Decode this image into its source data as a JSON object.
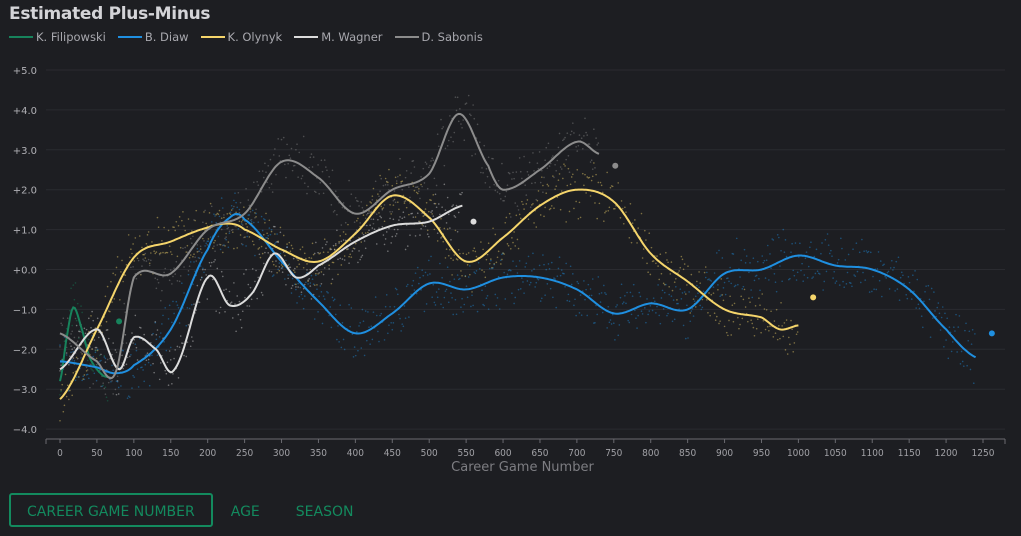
{
  "chart_data": {
    "type": "line",
    "title": "Estimated Plus-Minus",
    "xlabel": "Career Game Number",
    "ylabel": "",
    "xlim": [
      -10,
      1285
    ],
    "ylim": [
      -4.2,
      5.2
    ],
    "xticks": [
      0,
      50,
      100,
      150,
      200,
      250,
      300,
      350,
      400,
      450,
      500,
      550,
      600,
      650,
      700,
      750,
      800,
      850,
      900,
      950,
      1000,
      1050,
      1100,
      1150,
      1200,
      1250
    ],
    "yticks": [
      5,
      4,
      3,
      2,
      1,
      0,
      -1,
      -2,
      -3,
      -4
    ],
    "ytick_labels": [
      "+5.0",
      "+4.0",
      "+3.0",
      "+2.0",
      "+1.0",
      "+0.0",
      "−1.0",
      "−2.0",
      "−3.0",
      "−4.0"
    ],
    "grid": "horizontal",
    "legend_position": "top-left",
    "series": [
      {
        "name": "K. Filipowski",
        "color": "#17835c",
        "x": [
          0,
          10,
          18,
          28,
          40,
          55,
          65
        ],
        "y": [
          -2.8,
          -1.6,
          -0.95,
          -1.4,
          -2.2,
          -2.6,
          -2.7
        ],
        "last_point": {
          "x": 80,
          "y": -1.3
        }
      },
      {
        "name": "B. Diaw",
        "color": "#1f8fe0",
        "x": [
          0,
          50,
          75,
          100,
          150,
          200,
          230,
          250,
          300,
          350,
          400,
          450,
          500,
          550,
          600,
          650,
          700,
          750,
          800,
          850,
          900,
          950,
          1000,
          1050,
          1100,
          1150,
          1200,
          1240
        ],
        "y": [
          -2.3,
          -2.45,
          -2.6,
          -2.4,
          -1.5,
          0.5,
          1.3,
          1.25,
          0.2,
          -0.8,
          -1.6,
          -1.1,
          -0.35,
          -0.5,
          -0.2,
          -0.2,
          -0.5,
          -1.1,
          -0.85,
          -1.0,
          -0.1,
          0.0,
          0.35,
          0.1,
          0.0,
          -0.5,
          -1.5,
          -2.2
        ],
        "last_point": {
          "x": 1262,
          "y": -1.6
        }
      },
      {
        "name": "K. Olynyk",
        "color": "#f5d56b",
        "x": [
          0,
          50,
          100,
          150,
          200,
          230,
          250,
          300,
          350,
          400,
          450,
          500,
          550,
          600,
          650,
          700,
          750,
          800,
          850,
          900,
          950,
          975,
          1000
        ],
        "y": [
          -3.25,
          -1.5,
          0.3,
          0.7,
          1.05,
          1.15,
          1.0,
          0.5,
          0.2,
          0.9,
          1.85,
          1.3,
          0.2,
          0.8,
          1.6,
          2.0,
          1.7,
          0.4,
          -0.3,
          -1.0,
          -1.2,
          -1.5,
          -1.4
        ],
        "last_point": {
          "x": 1020,
          "y": -0.7
        }
      },
      {
        "name": "M. Wagner",
        "color": "#dcdcdc",
        "x": [
          0,
          50,
          80,
          100,
          130,
          155,
          200,
          230,
          260,
          290,
          320,
          350,
          400,
          450,
          500,
          545
        ],
        "y": [
          -2.5,
          -1.5,
          -2.5,
          -1.7,
          -2.0,
          -2.5,
          -0.2,
          -0.9,
          -0.6,
          0.4,
          -0.2,
          0.1,
          0.7,
          1.1,
          1.2,
          1.6
        ],
        "last_point": {
          "x": 560,
          "y": 1.2
        }
      },
      {
        "name": "D. Sabonis",
        "color": "#8c8c8c",
        "x": [
          0,
          50,
          75,
          100,
          150,
          200,
          250,
          300,
          350,
          400,
          450,
          500,
          540,
          580,
          600,
          650,
          700,
          730
        ],
        "y": [
          -1.6,
          -2.3,
          -2.6,
          -0.2,
          -0.1,
          1.0,
          1.4,
          2.7,
          2.3,
          1.4,
          2.0,
          2.4,
          3.9,
          2.6,
          2.0,
          2.5,
          3.2,
          2.9
        ],
        "last_point": {
          "x": 752,
          "y": 2.6
        }
      }
    ]
  },
  "tabs": [
    {
      "label": "CAREER GAME NUMBER",
      "active": true
    },
    {
      "label": "AGE",
      "active": false
    },
    {
      "label": "SEASON",
      "active": false
    }
  ]
}
